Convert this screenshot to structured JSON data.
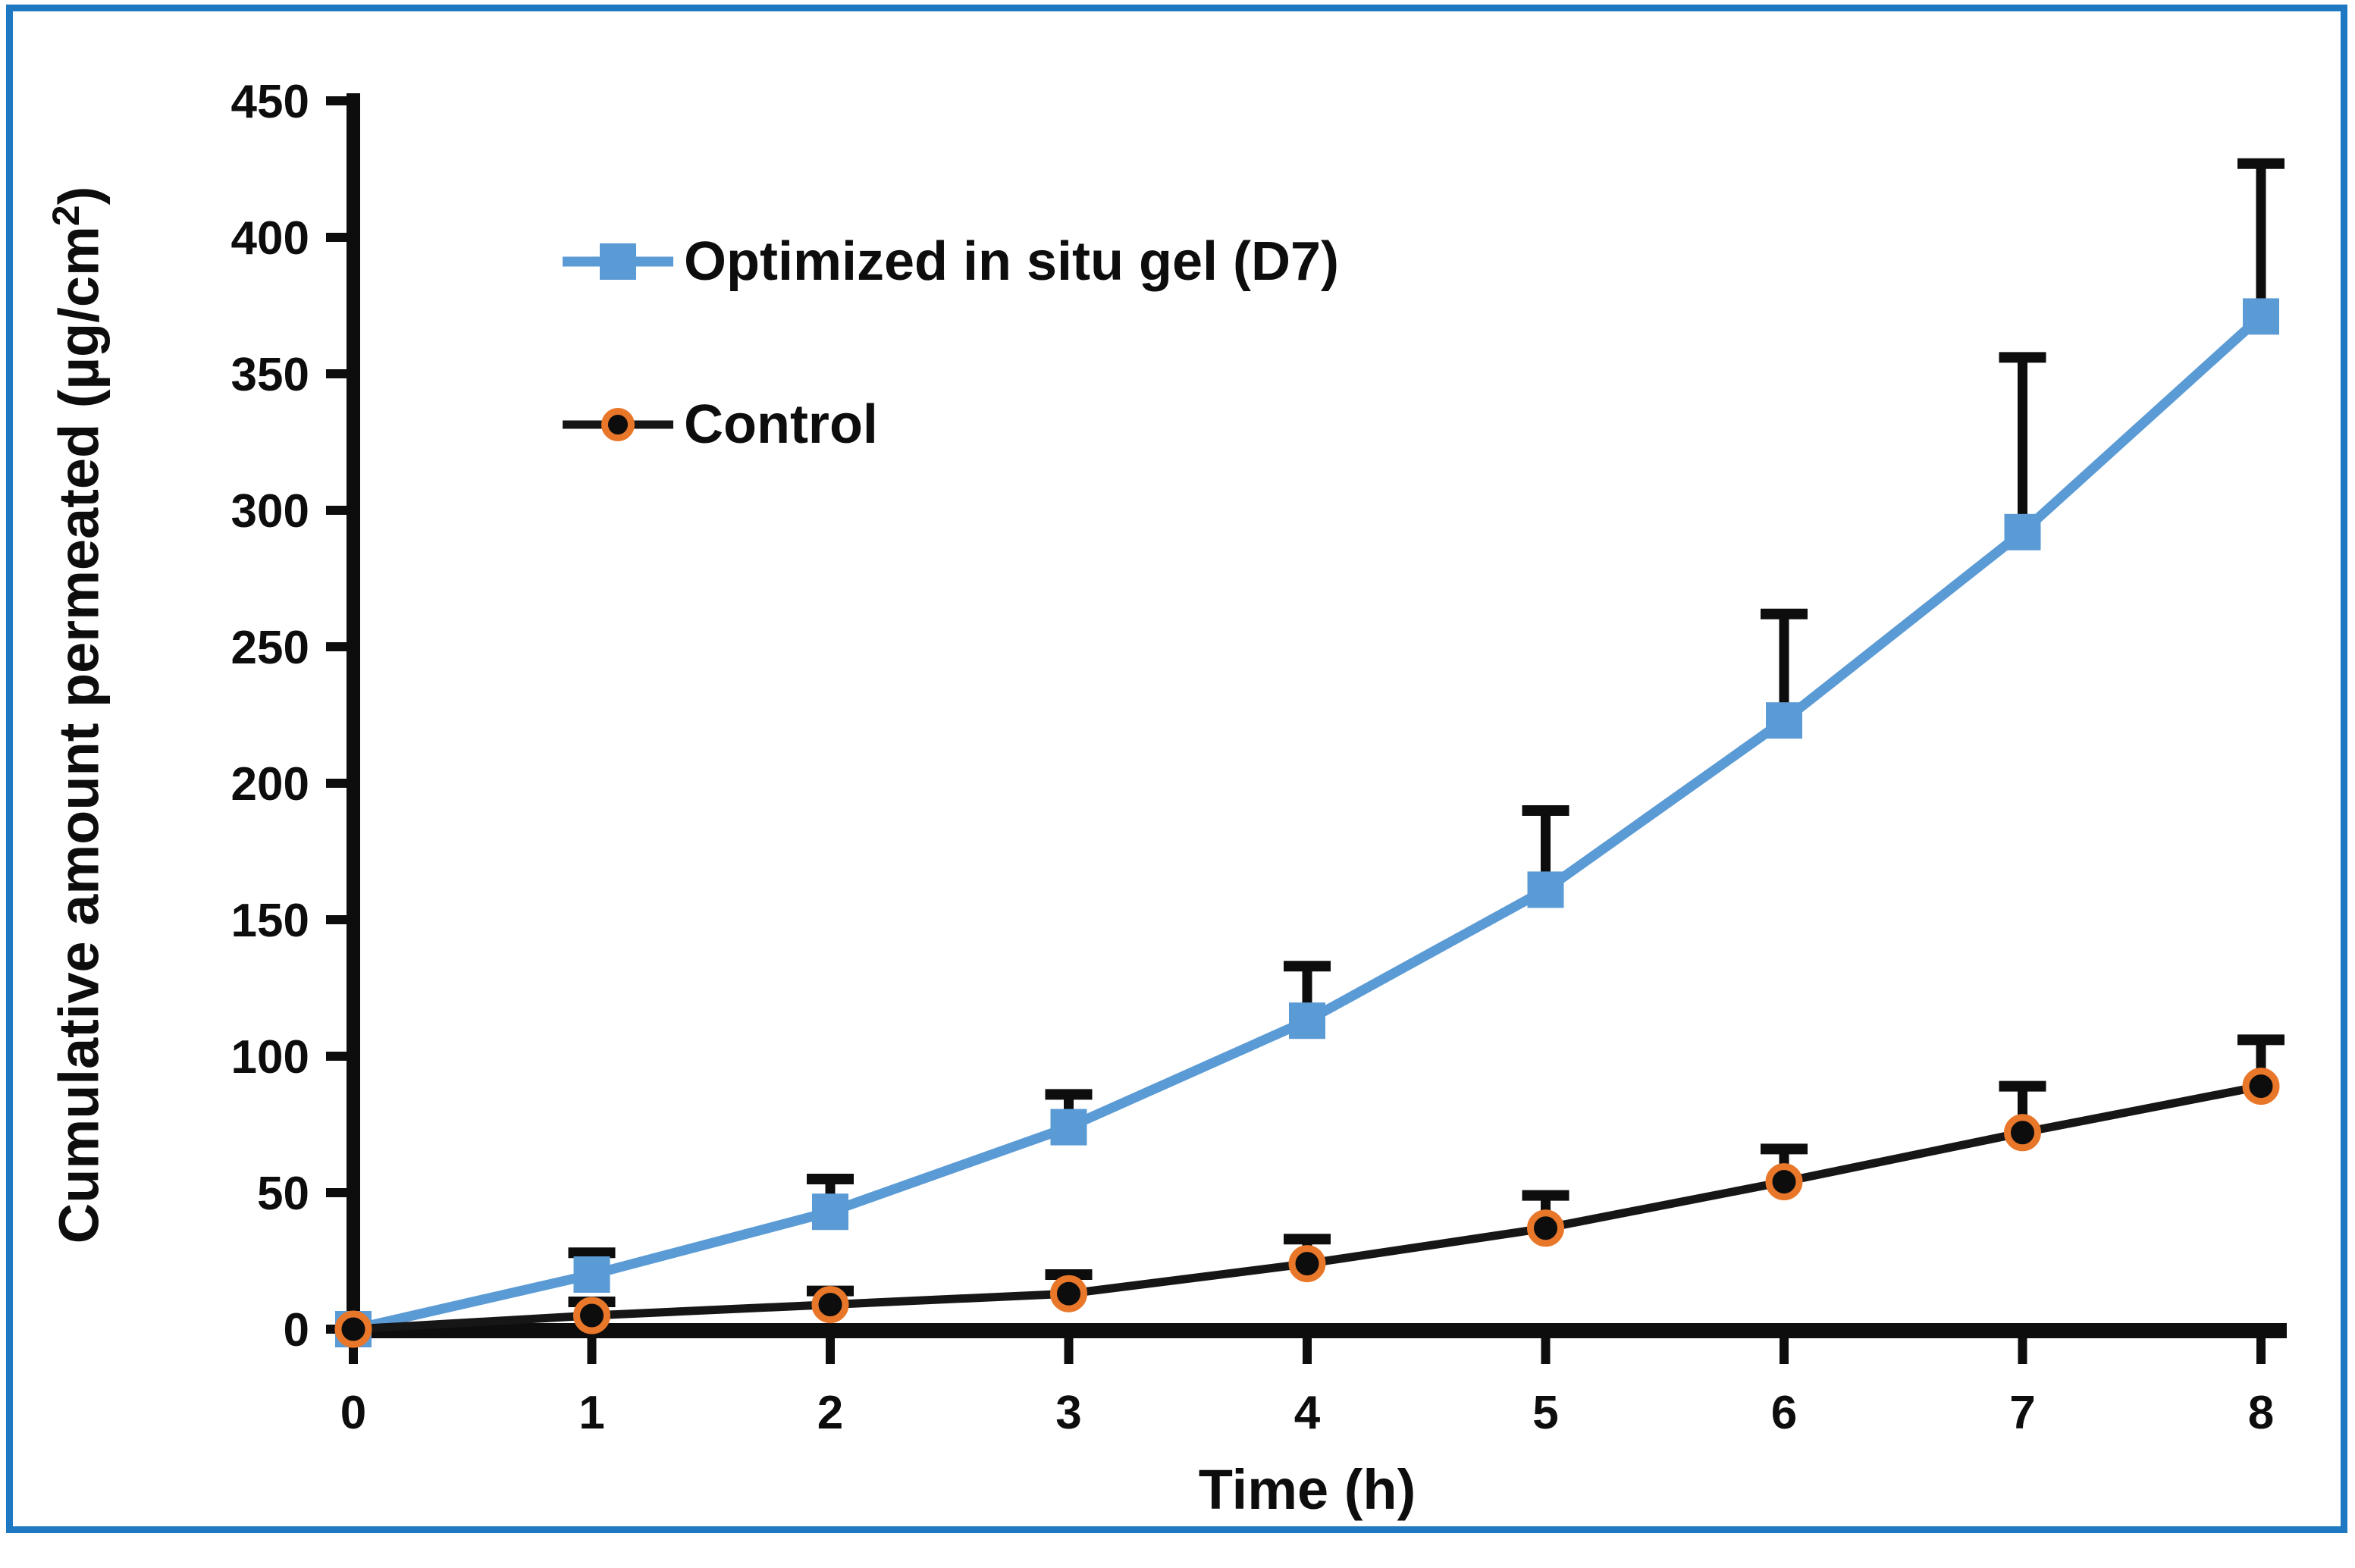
{
  "figure": {
    "background": "#FFFFFF",
    "border_color": "#1E78C2",
    "text_color": "#0D0D0D"
  },
  "chart_data": {
    "type": "line",
    "title": "",
    "xlabel": "Time (h)",
    "ylabel": "Cumulative amount permeated (µg/cm²)",
    "ylabel_parts": {
      "base": "Cumulative amount permeated (µg/cm",
      "sup": "2",
      "close": ")"
    },
    "x": [
      0,
      1,
      2,
      3,
      4,
      5,
      6,
      7,
      8
    ],
    "x_ticks": [
      "0",
      "1",
      "2",
      "3",
      "4",
      "5",
      "6",
      "7",
      "8"
    ],
    "y_ticks": [
      0,
      50,
      100,
      150,
      200,
      250,
      300,
      350,
      400,
      450
    ],
    "xlim": [
      0,
      8
    ],
    "ylim": [
      0,
      450
    ],
    "grid": false,
    "legend_position": "upper left inside plot",
    "error_bars": "upper only, black caps",
    "series": [
      {
        "name": "Optimized in situ gel (D7)",
        "marker": "square",
        "color": "#5B9BD5",
        "line_color": "#5B9BD5",
        "error_color": "#0D0D0D",
        "values": [
          0,
          20,
          43,
          74,
          113,
          161,
          223,
          292,
          371
        ],
        "errors_plus": [
          0,
          8,
          12,
          12,
          20,
          29,
          39,
          64,
          56
        ]
      },
      {
        "name": "Control",
        "marker": "circle",
        "color": "#0D0D0D",
        "marker_ring_color": "#E8772A",
        "line_color": "#161616",
        "error_color": "#0D0D0D",
        "values": [
          0,
          5,
          9,
          13,
          24,
          37,
          54,
          72,
          89
        ],
        "errors_plus": [
          0,
          5,
          5,
          7,
          9,
          12,
          12,
          17,
          17
        ]
      }
    ]
  }
}
